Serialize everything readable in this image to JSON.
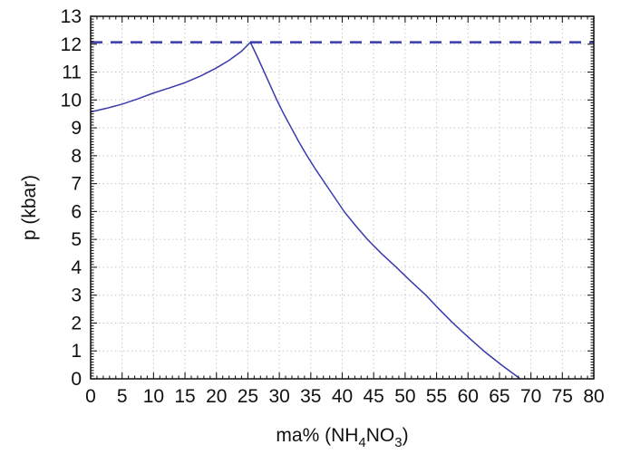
{
  "chart_data": {
    "type": "line",
    "title": "",
    "xlabel": "ma% (NH₄NO₃)",
    "xlabel_parts": [
      {
        "t": "ma% (NH",
        "sub": false
      },
      {
        "t": "4",
        "sub": true
      },
      {
        "t": "NO",
        "sub": false
      },
      {
        "t": "3",
        "sub": true
      },
      {
        "t": ")",
        "sub": false
      }
    ],
    "ylabel": "p (kbar)",
    "xlim": [
      0,
      80
    ],
    "ylim": [
      0,
      13
    ],
    "xticks": [
      0,
      5,
      10,
      15,
      20,
      25,
      30,
      35,
      40,
      45,
      50,
      55,
      60,
      65,
      70,
      75,
      80
    ],
    "xtick_labels": [
      "0",
      "5",
      "10",
      "15",
      "20",
      "25",
      "30",
      "35",
      "40",
      "45",
      "50",
      "55",
      "60",
      "65",
      "70",
      "75",
      "80"
    ],
    "yticks": [
      0,
      1,
      2,
      3,
      4,
      5,
      6,
      7,
      8,
      9,
      10,
      11,
      12,
      13
    ],
    "ytick_labels": [
      "0",
      "1",
      "2",
      "3",
      "4",
      "5",
      "6",
      "7",
      "8",
      "9",
      "10",
      "11",
      "12",
      "13"
    ],
    "x_minor_step": 1,
    "y_minor_step": 0.1,
    "grid": "dotted at major ticks",
    "legend": "none",
    "series": [
      {
        "name": "melting-pressure-curve",
        "style": "solid",
        "color": "#3a3aad",
        "width": 1.5,
        "points": [
          [
            0,
            9.57
          ],
          [
            2.5,
            9.7
          ],
          [
            5,
            9.85
          ],
          [
            7.5,
            10.04
          ],
          [
            10,
            10.25
          ],
          [
            12.5,
            10.43
          ],
          [
            15,
            10.62
          ],
          [
            17.5,
            10.86
          ],
          [
            20,
            11.15
          ],
          [
            22,
            11.42
          ],
          [
            24,
            11.75
          ],
          [
            25.4,
            12.07
          ],
          [
            26.5,
            11.55
          ],
          [
            27.6,
            11.0
          ],
          [
            28.6,
            10.5
          ],
          [
            29.6,
            10.0
          ],
          [
            30.7,
            9.5
          ],
          [
            31.9,
            9.0
          ],
          [
            33.1,
            8.5
          ],
          [
            34.4,
            8.0
          ],
          [
            35.8,
            7.5
          ],
          [
            37.3,
            7.0
          ],
          [
            38.8,
            6.5
          ],
          [
            40.3,
            6.0
          ],
          [
            42.1,
            5.5
          ],
          [
            44.0,
            5.0
          ],
          [
            46.2,
            4.5
          ],
          [
            48.6,
            4.0
          ],
          [
            50.9,
            3.5
          ],
          [
            53.3,
            3.0
          ],
          [
            55.4,
            2.5
          ],
          [
            57.6,
            2.0
          ],
          [
            60.0,
            1.5
          ],
          [
            62.5,
            1.0
          ],
          [
            65.3,
            0.5
          ],
          [
            68.3,
            0.0
          ]
        ]
      },
      {
        "name": "maximum-pressure-dashed-line",
        "style": "dashed",
        "color": "#3a3aad",
        "width": 2.6,
        "dash": "13 9",
        "points": [
          [
            0,
            12.07
          ],
          [
            80,
            12.07
          ]
        ]
      }
    ],
    "annotations": {
      "peak_point": [
        25.4,
        12.07
      ],
      "curve_start": [
        0,
        9.57
      ],
      "curve_end": [
        68.3,
        0
      ]
    }
  },
  "colors": {
    "background": "#ffffff",
    "frame": "#1a1a1a",
    "grid": "#c6c6c6",
    "series_blue": "#3a3aad",
    "text": "#111111"
  }
}
